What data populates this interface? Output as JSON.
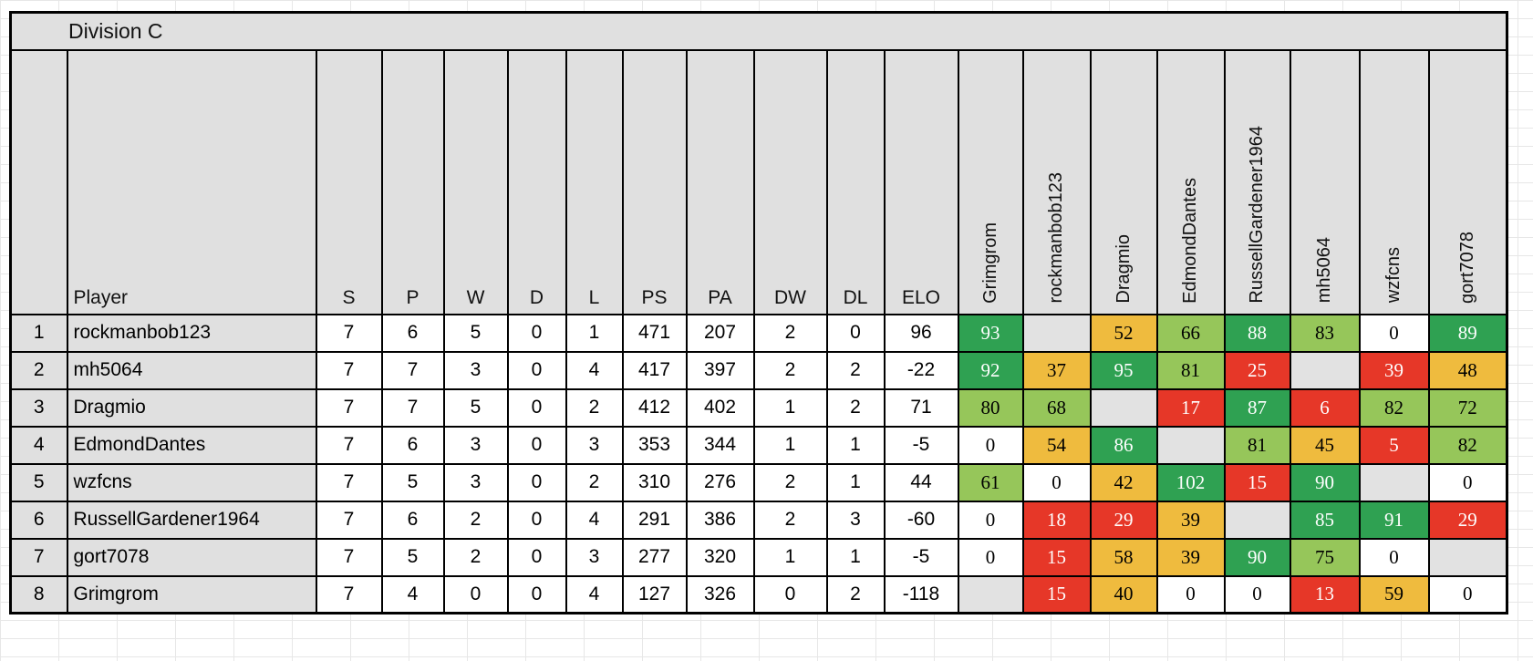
{
  "title": "Division C",
  "columns": {
    "rank": "",
    "player": "Player",
    "stats": [
      "S",
      "P",
      "W",
      "D",
      "L",
      "PS",
      "PA",
      "DW",
      "DL",
      "ELO"
    ],
    "opponents": [
      "Grimgrom",
      "rockmanbob123",
      "Dragmio",
      "EdmondDantes",
      "RussellGardener1964",
      "mh5064",
      "wzfcns",
      "gort7078"
    ]
  },
  "colors": {
    "green": "#2FA152",
    "light_green": "#96C65A",
    "orange": "#EFBB3E",
    "red": "#E63728",
    "white": "#FFFFFF",
    "diagonal": "#E2E2E2",
    "header_bg": "#E0E0E0",
    "border": "#000000",
    "text_on_dark": "#FFFFFF",
    "text": "#000000"
  },
  "rows": [
    {
      "rank": 1,
      "player": "rockmanbob123",
      "stats": [
        7,
        6,
        5,
        0,
        1,
        471,
        207,
        2,
        0,
        96
      ],
      "results": [
        {
          "v": 93,
          "c": "green"
        },
        {
          "c": "diagonal"
        },
        {
          "v": 52,
          "c": "orange"
        },
        {
          "v": 66,
          "c": "light_green"
        },
        {
          "v": 88,
          "c": "green"
        },
        {
          "v": 83,
          "c": "light_green"
        },
        {
          "v": 0,
          "c": "white"
        },
        {
          "v": 89,
          "c": "green"
        }
      ]
    },
    {
      "rank": 2,
      "player": "mh5064",
      "stats": [
        7,
        7,
        3,
        0,
        4,
        417,
        397,
        2,
        2,
        -22
      ],
      "results": [
        {
          "v": 92,
          "c": "green"
        },
        {
          "v": 37,
          "c": "orange"
        },
        {
          "v": 95,
          "c": "green"
        },
        {
          "v": 81,
          "c": "light_green"
        },
        {
          "v": 25,
          "c": "red"
        },
        {
          "c": "diagonal"
        },
        {
          "v": 39,
          "c": "red"
        },
        {
          "v": 48,
          "c": "orange"
        }
      ]
    },
    {
      "rank": 3,
      "player": "Dragmio",
      "stats": [
        7,
        7,
        5,
        0,
        2,
        412,
        402,
        1,
        2,
        71
      ],
      "results": [
        {
          "v": 80,
          "c": "light_green"
        },
        {
          "v": 68,
          "c": "light_green"
        },
        {
          "c": "diagonal"
        },
        {
          "v": 17,
          "c": "red"
        },
        {
          "v": 87,
          "c": "green"
        },
        {
          "v": 6,
          "c": "red"
        },
        {
          "v": 82,
          "c": "light_green"
        },
        {
          "v": 72,
          "c": "light_green"
        }
      ]
    },
    {
      "rank": 4,
      "player": "EdmondDantes",
      "stats": [
        7,
        6,
        3,
        0,
        3,
        353,
        344,
        1,
        1,
        -5
      ],
      "results": [
        {
          "v": 0,
          "c": "white"
        },
        {
          "v": 54,
          "c": "orange"
        },
        {
          "v": 86,
          "c": "green"
        },
        {
          "c": "diagonal"
        },
        {
          "v": 81,
          "c": "light_green"
        },
        {
          "v": 45,
          "c": "orange"
        },
        {
          "v": 5,
          "c": "red"
        },
        {
          "v": 82,
          "c": "light_green"
        }
      ]
    },
    {
      "rank": 5,
      "player": "wzfcns",
      "stats": [
        7,
        5,
        3,
        0,
        2,
        310,
        276,
        2,
        1,
        44
      ],
      "results": [
        {
          "v": 61,
          "c": "light_green"
        },
        {
          "v": 0,
          "c": "white"
        },
        {
          "v": 42,
          "c": "orange"
        },
        {
          "v": 102,
          "c": "green"
        },
        {
          "v": 15,
          "c": "red"
        },
        {
          "v": 90,
          "c": "green"
        },
        {
          "c": "diagonal"
        },
        {
          "v": 0,
          "c": "white"
        }
      ]
    },
    {
      "rank": 6,
      "player": "RussellGardener1964",
      "stats": [
        7,
        6,
        2,
        0,
        4,
        291,
        386,
        2,
        3,
        -60
      ],
      "results": [
        {
          "v": 0,
          "c": "white"
        },
        {
          "v": 18,
          "c": "red"
        },
        {
          "v": 29,
          "c": "red"
        },
        {
          "v": 39,
          "c": "orange"
        },
        {
          "c": "diagonal"
        },
        {
          "v": 85,
          "c": "green"
        },
        {
          "v": 91,
          "c": "green"
        },
        {
          "v": 29,
          "c": "red"
        }
      ]
    },
    {
      "rank": 7,
      "player": "gort7078",
      "stats": [
        7,
        5,
        2,
        0,
        3,
        277,
        320,
        1,
        1,
        -5
      ],
      "results": [
        {
          "v": 0,
          "c": "white"
        },
        {
          "v": 15,
          "c": "red"
        },
        {
          "v": 58,
          "c": "orange"
        },
        {
          "v": 39,
          "c": "orange"
        },
        {
          "v": 90,
          "c": "green"
        },
        {
          "v": 75,
          "c": "light_green"
        },
        {
          "v": 0,
          "c": "white"
        },
        {
          "c": "diagonal"
        }
      ]
    },
    {
      "rank": 8,
      "player": "Grimgrom",
      "stats": [
        7,
        4,
        0,
        0,
        4,
        127,
        326,
        0,
        2,
        -118
      ],
      "results": [
        {
          "c": "diagonal"
        },
        {
          "v": 15,
          "c": "red"
        },
        {
          "v": 40,
          "c": "orange"
        },
        {
          "v": 0,
          "c": "white"
        },
        {
          "v": 0,
          "c": "white"
        },
        {
          "v": 13,
          "c": "red"
        },
        {
          "v": 59,
          "c": "orange"
        },
        {
          "v": 0,
          "c": "white"
        }
      ]
    }
  ]
}
